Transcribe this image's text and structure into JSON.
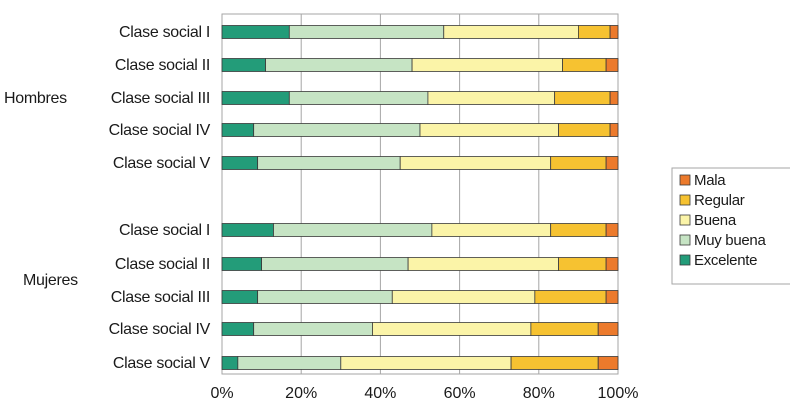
{
  "chart_data": {
    "type": "bar",
    "orientation": "horizontal",
    "stacked": true,
    "normalized": true,
    "xlim": [
      0,
      100
    ],
    "x_ticks": [
      "0%",
      "20%",
      "40%",
      "60%",
      "80%",
      "100%"
    ],
    "grid": "vertical",
    "legend_position": "right",
    "groups": [
      {
        "label": "Hombres",
        "categories": [
          "Clase social I",
          "Clase social II",
          "Clase social III",
          "Clase social IV",
          "Clase social V"
        ]
      },
      {
        "label": "Mujeres",
        "categories": [
          "Clase social I",
          "Clase social II",
          "Clase social III",
          "Clase social IV",
          "Clase social V"
        ]
      }
    ],
    "series": [
      {
        "name": "Excelente",
        "color": "#239c79",
        "values": [
          17,
          11,
          17,
          8,
          9,
          13,
          10,
          9,
          8,
          4
        ]
      },
      {
        "name": "Muy buena",
        "color": "#c6e4c4",
        "values": [
          39,
          37,
          35,
          42,
          36,
          40,
          37,
          34,
          30,
          26
        ]
      },
      {
        "name": "Buena",
        "color": "#fbf4a8",
        "values": [
          34,
          38,
          32,
          35,
          38,
          30,
          38,
          36,
          40,
          43
        ]
      },
      {
        "name": "Regular",
        "color": "#f6c231",
        "values": [
          8,
          11,
          14,
          13,
          14,
          14,
          12,
          18,
          17,
          22
        ]
      },
      {
        "name": "Mala",
        "color": "#ec7a2c",
        "values": [
          2,
          3,
          2,
          2,
          3,
          3,
          3,
          3,
          5,
          5
        ]
      }
    ],
    "legend_order": [
      "Mala",
      "Regular",
      "Buena",
      "Muy buena",
      "Excelente"
    ]
  }
}
